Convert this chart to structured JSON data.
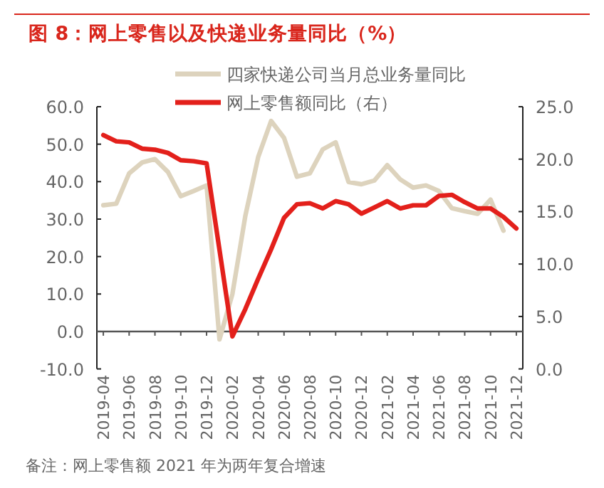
{
  "chart_data": {
    "type": "line",
    "title": "图 8：网上零售以及快递业务量同比（%）",
    "categories": [
      "2019-04",
      null,
      "2019-06",
      null,
      "2019-08",
      null,
      "2019-10",
      null,
      "2019-12",
      null,
      "2020-02",
      null,
      "2020-04",
      null,
      "2020-06",
      null,
      "2020-08",
      null,
      "2020-10",
      null,
      "2020-12",
      null,
      "2021-02",
      null,
      "2021-04",
      null,
      "2021-06",
      null,
      "2021-08",
      null,
      "2021-10",
      null,
      "2021-12"
    ],
    "series": [
      {
        "name": "四家快递公司当月总业务量同比",
        "color": "#ddd3bd",
        "values": [
          33.7,
          34.1,
          42.2,
          45.1,
          46.0,
          42.6,
          36.1,
          37.5,
          39.0,
          -2.1,
          10.0,
          30.8,
          46.6,
          56.2,
          51.7,
          41.3,
          42.2,
          48.6,
          50.5,
          39.9,
          39.3,
          40.3,
          44.4,
          40.6,
          38.4,
          39.0,
          37.5,
          32.9,
          32.1,
          31.4,
          35.2,
          26.9,
          null
        ]
      },
      {
        "name": "网上零售额同比（右）",
        "color": "#e3201b",
        "axis": "y2",
        "values": [
          22.3,
          21.7,
          21.6,
          21.0,
          20.9,
          20.6,
          19.9,
          19.8,
          19.6,
          null,
          3.1,
          5.7,
          8.6,
          11.4,
          14.4,
          15.7,
          15.8,
          15.3,
          16.0,
          15.7,
          14.8,
          15.4,
          16.0,
          15.3,
          15.6,
          15.6,
          16.5,
          16.6,
          15.9,
          15.3,
          15.3,
          14.5,
          13.4
        ]
      }
    ],
    "ylim": [
      -10,
      60
    ],
    "yticks": [
      {
        "value": -10,
        "label": "-10.0"
      },
      {
        "value": 0,
        "label": "0.0"
      },
      {
        "value": 10,
        "label": "10.0"
      },
      {
        "value": 20,
        "label": "20.0"
      },
      {
        "value": 30,
        "label": "30.0"
      },
      {
        "value": 40,
        "label": "40.0"
      },
      {
        "value": 50,
        "label": "50.0"
      },
      {
        "value": 60,
        "label": "60.0"
      }
    ],
    "y2lim": [
      0,
      25
    ],
    "y2ticks": [
      {
        "value": 0,
        "label": "0.0"
      },
      {
        "value": 5,
        "label": "5.0"
      },
      {
        "value": 10,
        "label": "10.0"
      },
      {
        "value": 15,
        "label": "15.0"
      },
      {
        "value": 20,
        "label": "20.0"
      },
      {
        "value": 25,
        "label": "25.0"
      }
    ],
    "legend": "top",
    "annotations": [
      "备注：网上零售额 2021 年为两年复合增速"
    ]
  }
}
